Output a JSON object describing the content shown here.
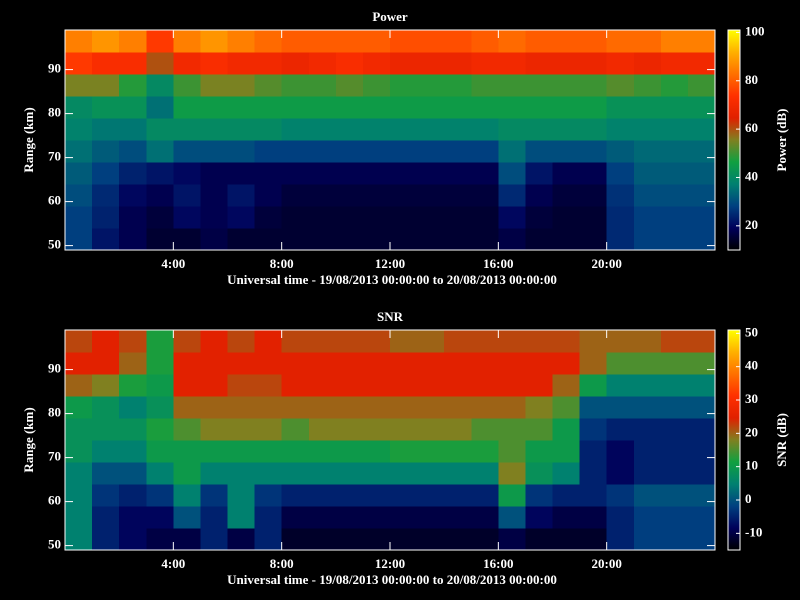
{
  "chart_data": [
    {
      "type": "heatmap",
      "title": "Power",
      "xlabel": "Universal time - 19/08/2013 00:00:00 to 20/08/2013 00:00:00",
      "ylabel": "Range (km)",
      "colorbar_label": "Power (dB)",
      "x": [
        0,
        1,
        2,
        3,
        4,
        5,
        6,
        7,
        8,
        9,
        10,
        11,
        12,
        13,
        14,
        15,
        16,
        17,
        18,
        19,
        20,
        21,
        22,
        23,
        24
      ],
      "y": [
        49,
        54,
        59,
        64,
        69,
        74,
        79,
        84,
        89,
        94,
        99
      ],
      "values": [
        [
          28,
          22,
          18,
          15,
          15,
          17,
          15,
          15,
          15,
          15,
          15,
          15,
          15,
          15,
          15,
          15,
          17,
          15,
          15,
          15,
          25,
          28,
          28,
          28
        ],
        [
          28,
          24,
          18,
          16,
          20,
          18,
          20,
          16,
          15,
          15,
          15,
          15,
          15,
          15,
          15,
          15,
          20,
          16,
          15,
          15,
          25,
          28,
          28,
          28
        ],
        [
          30,
          25,
          20,
          18,
          22,
          18,
          22,
          18,
          16,
          16,
          16,
          16,
          16,
          16,
          16,
          16,
          25,
          18,
          16,
          16,
          26,
          30,
          30,
          30
        ],
        [
          32,
          28,
          24,
          22,
          20,
          18,
          18,
          18,
          18,
          18,
          18,
          18,
          18,
          18,
          18,
          18,
          30,
          22,
          18,
          18,
          28,
          32,
          32,
          32
        ],
        [
          35,
          32,
          30,
          35,
          30,
          30,
          30,
          28,
          28,
          28,
          28,
          28,
          28,
          28,
          28,
          28,
          35,
          30,
          30,
          30,
          32,
          34,
          34,
          34
        ],
        [
          38,
          36,
          36,
          40,
          40,
          40,
          40,
          40,
          38,
          38,
          38,
          38,
          38,
          38,
          38,
          38,
          40,
          40,
          40,
          40,
          38,
          38,
          38,
          38
        ],
        [
          40,
          42,
          42,
          35,
          45,
          45,
          45,
          45,
          45,
          45,
          45,
          45,
          45,
          45,
          45,
          45,
          45,
          45,
          45,
          45,
          42,
          42,
          42,
          42
        ],
        [
          55,
          55,
          48,
          40,
          50,
          55,
          55,
          52,
          50,
          50,
          52,
          50,
          48,
          48,
          48,
          50,
          50,
          50,
          50,
          50,
          52,
          50,
          48,
          50
        ],
        [
          75,
          72,
          72,
          60,
          70,
          72,
          70,
          70,
          68,
          70,
          72,
          70,
          68,
          68,
          68,
          70,
          70,
          68,
          68,
          68,
          70,
          68,
          70,
          70
        ],
        [
          85,
          88,
          85,
          75,
          85,
          88,
          85,
          82,
          80,
          80,
          80,
          80,
          78,
          78,
          78,
          80,
          82,
          80,
          80,
          80,
          82,
          82,
          85,
          85
        ]
      ],
      "xlim": [
        0,
        24
      ],
      "ylim": [
        49,
        99
      ],
      "xticks": [
        {
          "value": 4,
          "label": "4:00"
        },
        {
          "value": 8,
          "label": "8:00"
        },
        {
          "value": 12,
          "label": "12:00"
        },
        {
          "value": 16,
          "label": "16:00"
        },
        {
          "value": 20,
          "label": "20:00"
        }
      ],
      "yticks": [
        50,
        60,
        70,
        80,
        90
      ],
      "zlim": [
        10,
        101
      ],
      "zticks": [
        20,
        40,
        60,
        80,
        100
      ],
      "colorscale": [
        "#000000",
        "#00005a",
        "#004080",
        "#008070",
        "#10a040",
        "#808020",
        "#e02000",
        "#ff3000",
        "#ff7000",
        "#ffb000",
        "#ffff00"
      ]
    },
    {
      "type": "heatmap",
      "title": "SNR",
      "xlabel": "Universal time - 19/08/2013 00:00:00 to 20/08/2013 00:00:00",
      "ylabel": "Range (km)",
      "colorbar_label": "SNR (dB)",
      "x": [
        0,
        1,
        2,
        3,
        4,
        5,
        6,
        7,
        8,
        9,
        10,
        11,
        12,
        13,
        14,
        15,
        16,
        17,
        18,
        19,
        20,
        21,
        22,
        23,
        24
      ],
      "y": [
        49,
        54,
        59,
        64,
        69,
        74,
        79,
        84,
        89,
        94,
        99
      ],
      "values": [
        [
          5,
          -5,
          -8,
          -10,
          -10,
          -5,
          -10,
          -5,
          -12,
          -12,
          -12,
          -12,
          -12,
          -12,
          -12,
          -12,
          -10,
          -12,
          -12,
          -12,
          -5,
          -2,
          -2,
          -2
        ],
        [
          5,
          -5,
          -8,
          -8,
          0,
          -5,
          5,
          -5,
          -10,
          -10,
          -10,
          -10,
          -10,
          -10,
          -10,
          -10,
          0,
          -8,
          -10,
          -10,
          -5,
          -2,
          -2,
          -2
        ],
        [
          5,
          -3,
          -5,
          -3,
          5,
          -3,
          5,
          -3,
          -5,
          -5,
          -5,
          -5,
          -5,
          -5,
          -5,
          -5,
          10,
          -3,
          -5,
          -5,
          -3,
          0,
          0,
          0
        ],
        [
          5,
          0,
          0,
          5,
          10,
          5,
          5,
          5,
          5,
          5,
          5,
          5,
          5,
          5,
          5,
          5,
          18,
          8,
          5,
          -5,
          -8,
          -5,
          -5,
          -5
        ],
        [
          8,
          5,
          5,
          10,
          10,
          10,
          10,
          10,
          10,
          10,
          10,
          10,
          12,
          12,
          12,
          12,
          15,
          10,
          10,
          -5,
          -8,
          -5,
          -5,
          -5
        ],
        [
          8,
          8,
          8,
          12,
          15,
          18,
          18,
          18,
          15,
          18,
          18,
          18,
          18,
          18,
          18,
          15,
          15,
          15,
          10,
          -3,
          -5,
          -5,
          -5,
          -5
        ],
        [
          10,
          8,
          5,
          8,
          20,
          20,
          20,
          20,
          20,
          20,
          20,
          20,
          20,
          20,
          20,
          20,
          20,
          18,
          15,
          0,
          0,
          0,
          0,
          0
        ],
        [
          20,
          18,
          12,
          10,
          25,
          25,
          22,
          22,
          25,
          25,
          25,
          25,
          25,
          25,
          25,
          25,
          25,
          25,
          20,
          10,
          5,
          5,
          5,
          5
        ],
        [
          25,
          25,
          20,
          12,
          25,
          25,
          25,
          25,
          25,
          25,
          25,
          25,
          25,
          25,
          25,
          25,
          25,
          25,
          25,
          20,
          15,
          15,
          15,
          15
        ],
        [
          22,
          25,
          22,
          12,
          22,
          25,
          22,
          25,
          22,
          22,
          22,
          22,
          20,
          20,
          22,
          22,
          22,
          22,
          22,
          20,
          20,
          20,
          22,
          22
        ]
      ],
      "xlim": [
        0,
        24
      ],
      "ylim": [
        49,
        99
      ],
      "xticks": [
        {
          "value": 4,
          "label": "4:00"
        },
        {
          "value": 8,
          "label": "8:00"
        },
        {
          "value": 12,
          "label": "12:00"
        },
        {
          "value": 16,
          "label": "16:00"
        },
        {
          "value": 20,
          "label": "20:00"
        }
      ],
      "yticks": [
        50,
        60,
        70,
        80,
        90
      ],
      "zlim": [
        -15,
        51
      ],
      "zticks": [
        -10,
        0,
        10,
        20,
        30,
        40,
        50
      ],
      "colorscale": [
        "#000000",
        "#00005a",
        "#004080",
        "#008070",
        "#10a040",
        "#808020",
        "#e02000",
        "#ff3000",
        "#ff7000",
        "#ffb000",
        "#ffff00"
      ]
    }
  ]
}
